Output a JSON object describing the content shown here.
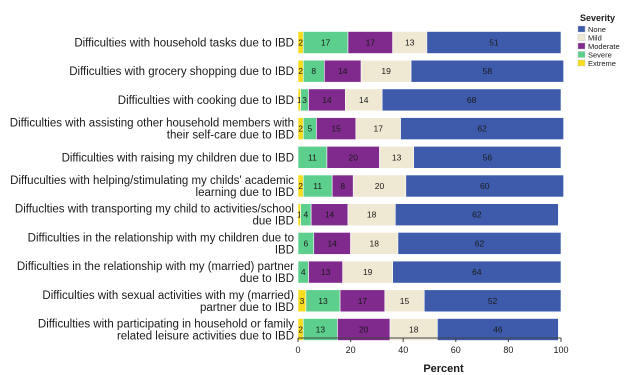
{
  "chart_data": {
    "type": "bar",
    "orientation": "horizontal",
    "stacked": true,
    "xlabel": "Percent",
    "ylabel": "",
    "xlim": [
      0,
      100
    ],
    "xticks": [
      0,
      20,
      40,
      60,
      80,
      100
    ],
    "grid": false,
    "legend": {
      "title": "Severity",
      "position": "top-right"
    },
    "categories": [
      [
        "Difficulties with household tasks due to IBD"
      ],
      [
        "Difficulties with grocery shopping due to IBD"
      ],
      [
        "Difficulties with cooking due to IBD"
      ],
      [
        "Difficulties with assisting other household members with",
        "their self-care due to IBD"
      ],
      [
        "Difficulties with raising my children due to IBD"
      ],
      [
        "Diffuculties with helping/stimulating my childs' academic",
        "learning due to IBD"
      ],
      [
        "Diffuclties with transporting my child to activities/school",
        "due IBD"
      ],
      [
        "Difficulties in the relationship with my children due to",
        "IBD"
      ],
      [
        "Difficulties in the relationship with my (married) partner",
        "due to IBD"
      ],
      [
        "Difficulties with sexual activities with my (married)",
        "partner due to IBD"
      ],
      [
        "Difficulties with participating in household or family",
        "related leisure activities due to IBD"
      ]
    ],
    "series": [
      {
        "name": "Extreme",
        "color": "#f5dc1e",
        "values": [
          2,
          2,
          1,
          2,
          0,
          2,
          1,
          0,
          0,
          3,
          2
        ]
      },
      {
        "name": "Severe",
        "color": "#5ccf8c",
        "values": [
          17,
          8,
          3,
          5,
          11,
          11,
          4,
          6,
          4,
          13,
          13
        ]
      },
      {
        "name": "Moderate",
        "color": "#7f2a8c",
        "values": [
          17,
          14,
          14,
          15,
          20,
          8,
          14,
          14,
          13,
          17,
          20
        ]
      },
      {
        "name": "Mild",
        "color": "#efe8d3",
        "values": [
          13,
          19,
          14,
          17,
          13,
          20,
          18,
          18,
          19,
          15,
          18
        ]
      },
      {
        "name": "None",
        "color": "#3e5bab",
        "values": [
          51,
          58,
          68,
          62,
          56,
          60,
          62,
          62,
          64,
          52,
          46
        ]
      }
    ],
    "legend_order": [
      "None",
      "Mild",
      "Moderate",
      "Severe",
      "Extreme"
    ]
  }
}
